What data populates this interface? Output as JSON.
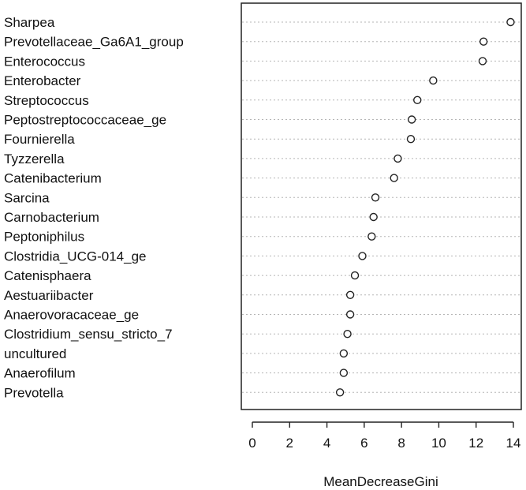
{
  "chart_data": {
    "type": "scatter",
    "title": "",
    "xlabel": "MeanDecreaseGini",
    "ylabel": "",
    "xlim": [
      0,
      14
    ],
    "x_ticks": [
      0,
      2,
      4,
      6,
      8,
      10,
      12,
      14
    ],
    "grid": "dotted horizontal guide lines",
    "marker": "open circle",
    "categories": [
      "Sharpea",
      "Prevotellaceae_Ga6A1_group",
      "Enterococcus",
      "Enterobacter",
      "Streptococcus",
      "Peptostreptococcaceae_ge",
      "Fournierella",
      "Tyzzerella",
      "Catenibacterium",
      "Sarcina",
      "Carnobacterium",
      "Peptoniphilus",
      "Clostridia_UCG-014_ge",
      "Catenisphaera",
      "Aestuariibacter",
      "Anaerovoracaceae_ge",
      "Clostridium_sensu_stricto_7",
      "uncultured",
      "Anaerofilum",
      "Prevotella"
    ],
    "values": [
      13.85,
      12.4,
      12.35,
      9.7,
      8.85,
      8.55,
      8.5,
      7.8,
      7.6,
      6.6,
      6.5,
      6.4,
      5.9,
      5.5,
      5.25,
      5.25,
      5.1,
      4.9,
      4.9,
      4.7
    ]
  }
}
